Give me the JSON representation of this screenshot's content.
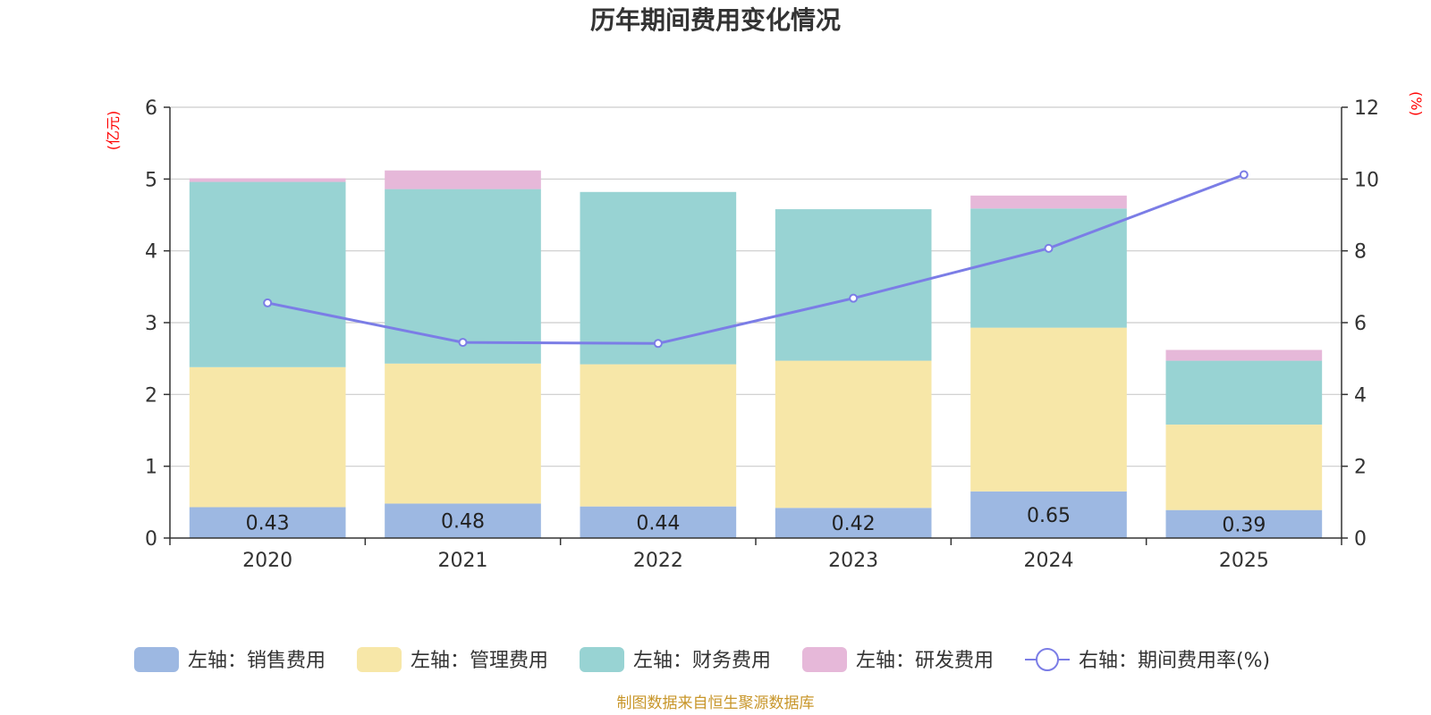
{
  "chart_data": {
    "type": "bar",
    "stacked": true,
    "title": "历年期间费用变化情况",
    "categories": [
      "2020",
      "2021",
      "2022",
      "2023",
      "2024",
      "2025"
    ],
    "series": [
      {
        "name": "左轴：销售费用",
        "axis": "left",
        "color": "#9db8e2",
        "values": [
          0.43,
          0.48,
          0.44,
          0.42,
          0.65,
          0.39
        ],
        "show_labels": true
      },
      {
        "name": "左轴：管理费用",
        "axis": "left",
        "color": "#f7e7a8",
        "values": [
          1.95,
          1.95,
          1.98,
          2.05,
          2.28,
          1.19
        ],
        "show_labels": false
      },
      {
        "name": "左轴：财务费用",
        "axis": "left",
        "color": "#98d3d3",
        "values": [
          2.58,
          2.43,
          2.4,
          2.11,
          1.66,
          0.89
        ],
        "show_labels": false
      },
      {
        "name": "左轴：研发费用",
        "axis": "left",
        "color": "#e6b8d9",
        "values": [
          0.05,
          0.26,
          0.0,
          0.0,
          0.18,
          0.15
        ],
        "show_labels": false
      },
      {
        "name": "右轴：期间费用率(%)",
        "axis": "right",
        "type": "line",
        "color": "#7b7de6",
        "values": [
          6.55,
          5.45,
          5.42,
          6.68,
          8.07,
          10.12
        ]
      }
    ],
    "left_axis": {
      "label": "(亿元)",
      "ylim": [
        0,
        6
      ],
      "ticks": [
        "0",
        "1",
        "2",
        "3",
        "4",
        "5",
        "6"
      ]
    },
    "right_axis": {
      "label": "(%)",
      "ylim": [
        0,
        12
      ],
      "ticks": [
        "0",
        "2",
        "4",
        "6",
        "8",
        "10",
        "12"
      ]
    },
    "grid": true,
    "legend_position": "bottom"
  },
  "source_note": "制图数据来自恒生聚源数据库"
}
